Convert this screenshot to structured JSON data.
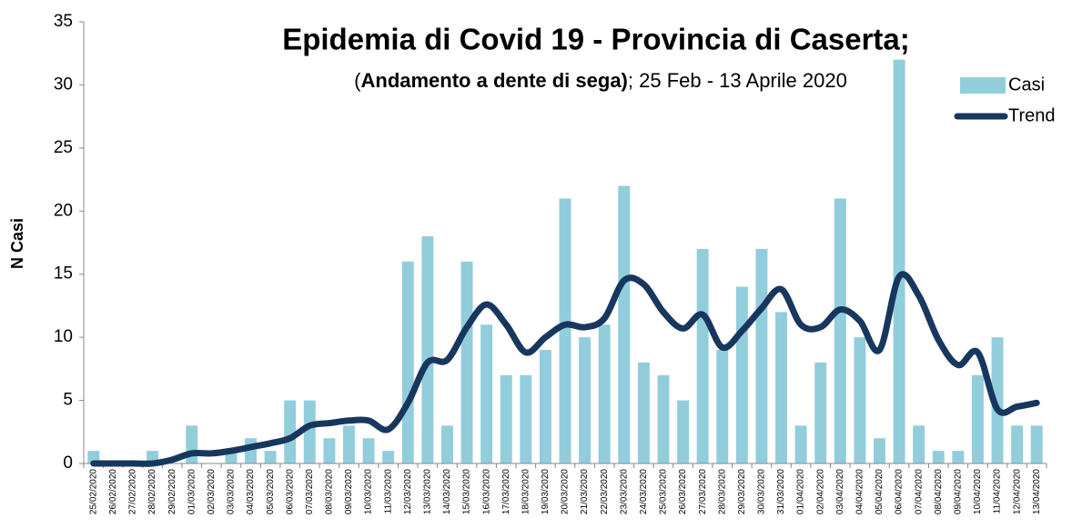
{
  "chart_data": {
    "type": "bar+line",
    "title": "Epidemia di Covid 19 - Provincia di Caserta;",
    "subtitle": [
      "(",
      "Andamento a dente di sega)",
      "; 25 Feb - 13 Aprile 2020"
    ],
    "ylabel": "N Casi",
    "categories": [
      "25/02/2020",
      "26/02/2020",
      "27/02/2020",
      "28/02/2020",
      "29/02/2020",
      "01/03/2020",
      "02/03/2020",
      "03/03/2020",
      "04/03/2020",
      "05/03/2020",
      "06/03/2020",
      "07/03/2020",
      "08/03/2020",
      "09/03/2020",
      "10/03/2020",
      "11/03/2020",
      "12/03/2020",
      "13/03/2020",
      "14/03/2020",
      "15/03/2020",
      "16/03/2020",
      "17/03/2020",
      "18/03/2020",
      "19/03/2020",
      "20/03/2020",
      "21/03/2020",
      "22/03/2020",
      "23/03/2020",
      "24/03/2020",
      "25/03/2020",
      "26/03/2020",
      "27/03/2020",
      "28/03/2020",
      "29/03/2020",
      "30/03/2020",
      "31/03/2020",
      "01/04/2020",
      "02/04/2020",
      "03/04/2020",
      "04/04/2020",
      "05/04/2020",
      "06/04/2020",
      "07/04/2020",
      "08/04/2020",
      "09/04/2020",
      "10/04/2020",
      "11/04/2020",
      "12/04/2020",
      "13/04/2020"
    ],
    "series": [
      {
        "name": "Casi",
        "type": "bar",
        "color": "#92cddc",
        "values": [
          1,
          0,
          0,
          1,
          0,
          3,
          0,
          1,
          2,
          1,
          5,
          5,
          2,
          3,
          2,
          1,
          16,
          18,
          3,
          16,
          11,
          7,
          7,
          9,
          21,
          10,
          11,
          22,
          8,
          7,
          5,
          17,
          9,
          14,
          17,
          12,
          3,
          8,
          21,
          10,
          2,
          32,
          3,
          1,
          1,
          7,
          10,
          3,
          3
        ]
      },
      {
        "name": "Trend",
        "type": "line",
        "color": "#17375e",
        "values": [
          0,
          0,
          0,
          0,
          0.3,
          0.8,
          0.8,
          1.0,
          1.3,
          1.6,
          2.0,
          3.0,
          3.2,
          3.4,
          3.4,
          2.7,
          4.8,
          8.0,
          8.2,
          10.8,
          12.6,
          11.0,
          8.8,
          10.0,
          11.0,
          10.8,
          11.5,
          14.5,
          14.2,
          12.0,
          10.7,
          11.8,
          9.2,
          10.5,
          12.3,
          13.8,
          11.0,
          10.8,
          12.2,
          11.3,
          9.0,
          14.8,
          13.3,
          9.8,
          7.8,
          8.8,
          4.3,
          4.5,
          4.8
        ]
      }
    ],
    "ylim": [
      0,
      35
    ],
    "yticks": [
      0,
      5,
      10,
      15,
      20,
      25,
      30,
      35
    ],
    "grid": false,
    "legend": "upper right"
  }
}
